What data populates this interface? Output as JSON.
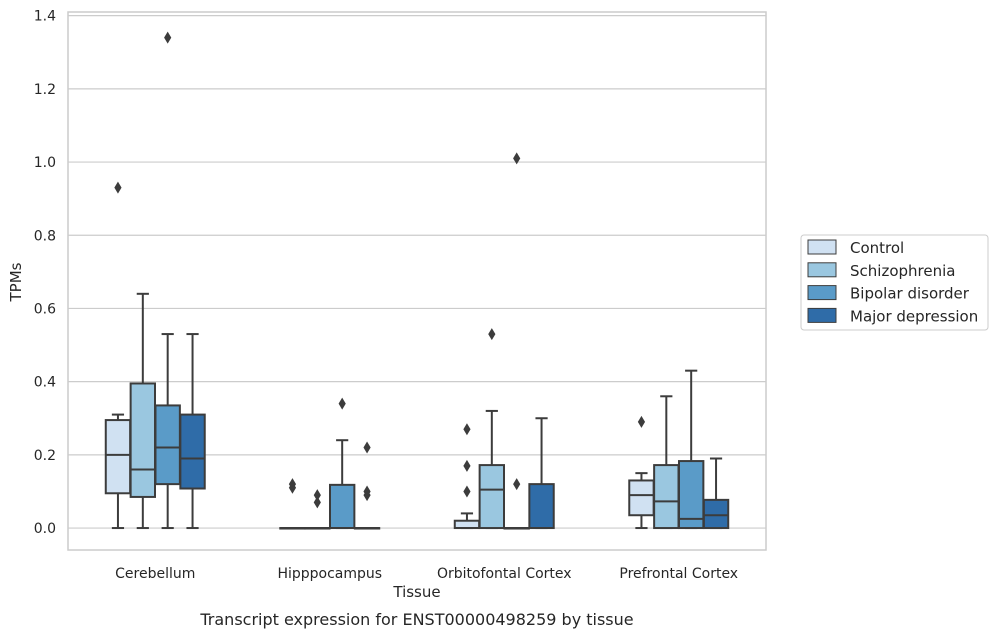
{
  "caption": "Transcript expression for ENST00000498259 by tissue",
  "chart_data": {
    "type": "box",
    "title": "",
    "xlabel": "Tissue",
    "ylabel": "TPMs",
    "ylim": [
      -0.06,
      1.41
    ],
    "yticks": [
      "0.0",
      "0.2",
      "0.4",
      "0.6",
      "0.8",
      "1.0",
      "1.2",
      "1.4"
    ],
    "ytick_values": [
      0,
      0.2,
      0.4,
      0.6,
      0.8,
      1.0,
      1.2,
      1.4
    ],
    "grid": "horizontal",
    "legend_position": "outside-right",
    "categories": [
      "Cerebellum",
      "Hipppocampus",
      "Orbitofontal Cortex",
      "Prefrontal Cortex"
    ],
    "series": [
      {
        "name": "Control",
        "color": "#d0e1f2",
        "boxes": [
          {
            "q1": 0.095,
            "median": 0.2,
            "q3": 0.295,
            "whisker_low": 0.0,
            "whisker_high": 0.31,
            "outliers": [
              0.93
            ]
          },
          {
            "q1": 0.0,
            "median": 0.0,
            "q3": 0.0,
            "whisker_low": 0.0,
            "whisker_high": 0.0,
            "outliers": [
              0.11,
              0.12
            ]
          },
          {
            "q1": 0.0,
            "median": 0.0,
            "q3": 0.02,
            "whisker_low": 0.0,
            "whisker_high": 0.04,
            "outliers": [
              0.1,
              0.17,
              0.27
            ]
          },
          {
            "q1": 0.035,
            "median": 0.09,
            "q3": 0.13,
            "whisker_low": 0.0,
            "whisker_high": 0.15,
            "outliers": [
              0.29
            ]
          }
        ]
      },
      {
        "name": "Schizophrenia",
        "color": "#9ac7e0",
        "boxes": [
          {
            "q1": 0.085,
            "median": 0.16,
            "q3": 0.395,
            "whisker_low": 0.0,
            "whisker_high": 0.64,
            "outliers": []
          },
          {
            "q1": 0.0,
            "median": 0.0,
            "q3": 0.0,
            "whisker_low": 0.0,
            "whisker_high": 0.0,
            "outliers": [
              0.07,
              0.09
            ]
          },
          {
            "q1": 0.0,
            "median": 0.105,
            "q3": 0.172,
            "whisker_low": 0.0,
            "whisker_high": 0.32,
            "outliers": [
              0.53
            ]
          },
          {
            "q1": 0.0,
            "median": 0.073,
            "q3": 0.172,
            "whisker_low": 0.0,
            "whisker_high": 0.36,
            "outliers": []
          }
        ]
      },
      {
        "name": "Bipolar disorder",
        "color": "#5a9bc8",
        "boxes": [
          {
            "q1": 0.12,
            "median": 0.22,
            "q3": 0.335,
            "whisker_low": 0.0,
            "whisker_high": 0.53,
            "outliers": [
              1.34
            ]
          },
          {
            "q1": 0.0,
            "median": 0.0,
            "q3": 0.118,
            "whisker_low": 0.0,
            "whisker_high": 0.24,
            "outliers": [
              0.34
            ]
          },
          {
            "q1": 0.0,
            "median": 0.0,
            "q3": 0.0,
            "whisker_low": 0.0,
            "whisker_high": 0.0,
            "outliers": [
              0.12,
              1.01
            ]
          },
          {
            "q1": 0.0,
            "median": 0.025,
            "q3": 0.183,
            "whisker_low": 0.0,
            "whisker_high": 0.43,
            "outliers": []
          }
        ]
      },
      {
        "name": "Major depression",
        "color": "#2f6ca8",
        "boxes": [
          {
            "q1": 0.108,
            "median": 0.19,
            "q3": 0.31,
            "whisker_low": 0.0,
            "whisker_high": 0.53,
            "outliers": []
          },
          {
            "q1": 0.0,
            "median": 0.0,
            "q3": 0.0,
            "whisker_low": 0.0,
            "whisker_high": 0.0,
            "outliers": [
              0.09,
              0.1,
              0.22
            ]
          },
          {
            "q1": 0.0,
            "median": 0.0,
            "q3": 0.12,
            "whisker_low": 0.0,
            "whisker_high": 0.3,
            "outliers": []
          },
          {
            "q1": 0.0,
            "median": 0.035,
            "q3": 0.077,
            "whisker_low": 0.0,
            "whisker_high": 0.19,
            "outliers": []
          }
        ]
      }
    ]
  }
}
